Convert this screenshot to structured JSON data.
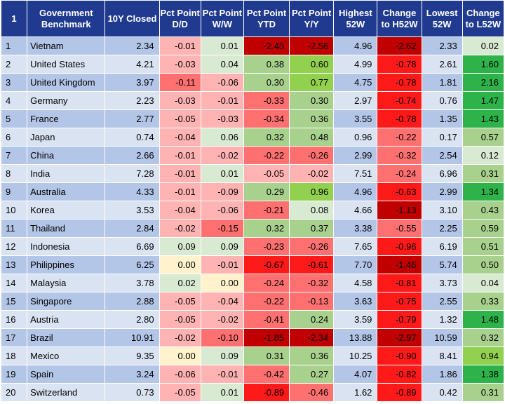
{
  "table": {
    "headers": [
      "1",
      "Government Benchmark",
      "10Y Closed",
      "Pct Point D/D",
      "Pct Point W/W",
      "Pct Point YTD",
      "Pct Point Y/Y",
      "Highest 52W",
      "Change to H52W",
      "Lowest 52W",
      "Change to L52W"
    ],
    "colors": {
      "header_bg": "#1f3a8f",
      "row_odd": "#b4c6e7",
      "row_even": "#dae3f2",
      "neg_light": "#ffb3b3",
      "neg_mid": "#ff7070",
      "neg_strong": "#ff1a1a",
      "neg_dark": "#c00000",
      "zero": "#fff2cc",
      "pos_light": "#d9ead3",
      "pos_mid": "#a9d18e",
      "pos_strong": "#92d050",
      "pos_dark": "#2db34a"
    },
    "rows": [
      {
        "n": "1",
        "country": "Vietnam",
        "closed": "2.34",
        "dd": "-0.01",
        "ww": "0.01",
        "ytd": "-2.45",
        "yy": "-2.56",
        "h52": "4.96",
        "ch52": "-2.62",
        "l52": "2.33",
        "cl52": "0.02"
      },
      {
        "n": "2",
        "country": "United States",
        "closed": "4.21",
        "dd": "-0.03",
        "ww": "0.04",
        "ytd": "0.38",
        "yy": "0.60",
        "h52": "4.99",
        "ch52": "-0.78",
        "l52": "2.61",
        "cl52": "1.60"
      },
      {
        "n": "3",
        "country": "United Kingdom",
        "closed": "3.97",
        "dd": "-0.11",
        "ww": "-0.06",
        "ytd": "0.30",
        "yy": "0.77",
        "h52": "4.75",
        "ch52": "-0.78",
        "l52": "1.81",
        "cl52": "2.16"
      },
      {
        "n": "4",
        "country": "Germany",
        "closed": "2.23",
        "dd": "-0.03",
        "ww": "-0.01",
        "ytd": "-0.33",
        "yy": "0.30",
        "h52": "2.97",
        "ch52": "-0.74",
        "l52": "0.76",
        "cl52": "1.47"
      },
      {
        "n": "5",
        "country": "France",
        "closed": "2.77",
        "dd": "-0.05",
        "ww": "-0.03",
        "ytd": "-0.34",
        "yy": "0.36",
        "h52": "3.55",
        "ch52": "-0.78",
        "l52": "1.35",
        "cl52": "1.43"
      },
      {
        "n": "6",
        "country": "Japan",
        "closed": "0.74",
        "dd": "-0.04",
        "ww": "0.06",
        "ytd": "0.32",
        "yy": "0.48",
        "h52": "0.96",
        "ch52": "-0.22",
        "l52": "0.17",
        "cl52": "0.57"
      },
      {
        "n": "7",
        "country": "China",
        "closed": "2.66",
        "dd": "-0.01",
        "ww": "-0.02",
        "ytd": "-0.22",
        "yy": "-0.26",
        "h52": "2.99",
        "ch52": "-0.32",
        "l52": "2.54",
        "cl52": "0.12"
      },
      {
        "n": "8",
        "country": "India",
        "closed": "7.28",
        "dd": "-0.01",
        "ww": "0.01",
        "ytd": "-0.05",
        "yy": "-0.02",
        "h52": "7.51",
        "ch52": "-0.24",
        "l52": "6.96",
        "cl52": "0.31"
      },
      {
        "n": "9",
        "country": "Australia",
        "closed": "4.33",
        "dd": "-0.01",
        "ww": "-0.09",
        "ytd": "0.29",
        "yy": "0.96",
        "h52": "4.96",
        "ch52": "-0.63",
        "l52": "2.99",
        "cl52": "1.34"
      },
      {
        "n": "10",
        "country": "Korea",
        "closed": "3.53",
        "dd": "-0.04",
        "ww": "-0.06",
        "ytd": "-0.21",
        "yy": "0.08",
        "h52": "4.66",
        "ch52": "-1.13",
        "l52": "3.10",
        "cl52": "0.43"
      },
      {
        "n": "11",
        "country": "Thailand",
        "closed": "2.84",
        "dd": "-0.02",
        "ww": "-0.15",
        "ytd": "0.32",
        "yy": "0.37",
        "h52": "3.38",
        "ch52": "-0.55",
        "l52": "2.25",
        "cl52": "0.59"
      },
      {
        "n": "12",
        "country": "Indonesia",
        "closed": "6.69",
        "dd": "0.09",
        "ww": "0.09",
        "ytd": "-0.23",
        "yy": "-0.26",
        "h52": "7.65",
        "ch52": "-0.96",
        "l52": "6.19",
        "cl52": "0.51"
      },
      {
        "n": "13",
        "country": "Philippines",
        "closed": "6.25",
        "dd": "0.00",
        "ww": "-0.01",
        "ytd": "-0.67",
        "yy": "-0.61",
        "h52": "7.70",
        "ch52": "-1.46",
        "l52": "5.74",
        "cl52": "0.50"
      },
      {
        "n": "14",
        "country": "Malaysia",
        "closed": "3.78",
        "dd": "0.02",
        "ww": "0.00",
        "ytd": "-0.24",
        "yy": "-0.32",
        "h52": "4.58",
        "ch52": "-0.81",
        "l52": "3.73",
        "cl52": "0.04"
      },
      {
        "n": "15",
        "country": "Singapore",
        "closed": "2.88",
        "dd": "-0.05",
        "ww": "-0.04",
        "ytd": "-0.22",
        "yy": "-0.13",
        "h52": "3.63",
        "ch52": "-0.75",
        "l52": "2.55",
        "cl52": "0.33"
      },
      {
        "n": "16",
        "country": "Austria",
        "closed": "2.80",
        "dd": "-0.05",
        "ww": "-0.02",
        "ytd": "-0.41",
        "yy": "0.24",
        "h52": "3.59",
        "ch52": "-0.79",
        "l52": "1.32",
        "cl52": "1.48"
      },
      {
        "n": "17",
        "country": "Brazil",
        "closed": "10.91",
        "dd": "-0.02",
        "ww": "-0.10",
        "ytd": "-1.85",
        "yy": "-2.34",
        "h52": "13.88",
        "ch52": "-2.97",
        "l52": "10.59",
        "cl52": "0.32"
      },
      {
        "n": "18",
        "country": "Mexico",
        "closed": "9.35",
        "dd": "0.00",
        "ww": "0.09",
        "ytd": "0.31",
        "yy": "0.36",
        "h52": "10.25",
        "ch52": "-0.90",
        "l52": "8.41",
        "cl52": "0.94"
      },
      {
        "n": "19",
        "country": "Spain",
        "closed": "3.24",
        "dd": "-0.06",
        "ww": "-0.01",
        "ytd": "-0.42",
        "yy": "0.27",
        "h52": "4.07",
        "ch52": "-0.82",
        "l52": "1.86",
        "cl52": "1.38"
      },
      {
        "n": "20",
        "country": "Switzerland",
        "closed": "0.73",
        "dd": "-0.05",
        "ww": "0.01",
        "ytd": "-0.89",
        "yy": "-0.46",
        "h52": "1.62",
        "ch52": "-0.89",
        "l52": "0.42",
        "cl52": "0.31"
      }
    ]
  }
}
